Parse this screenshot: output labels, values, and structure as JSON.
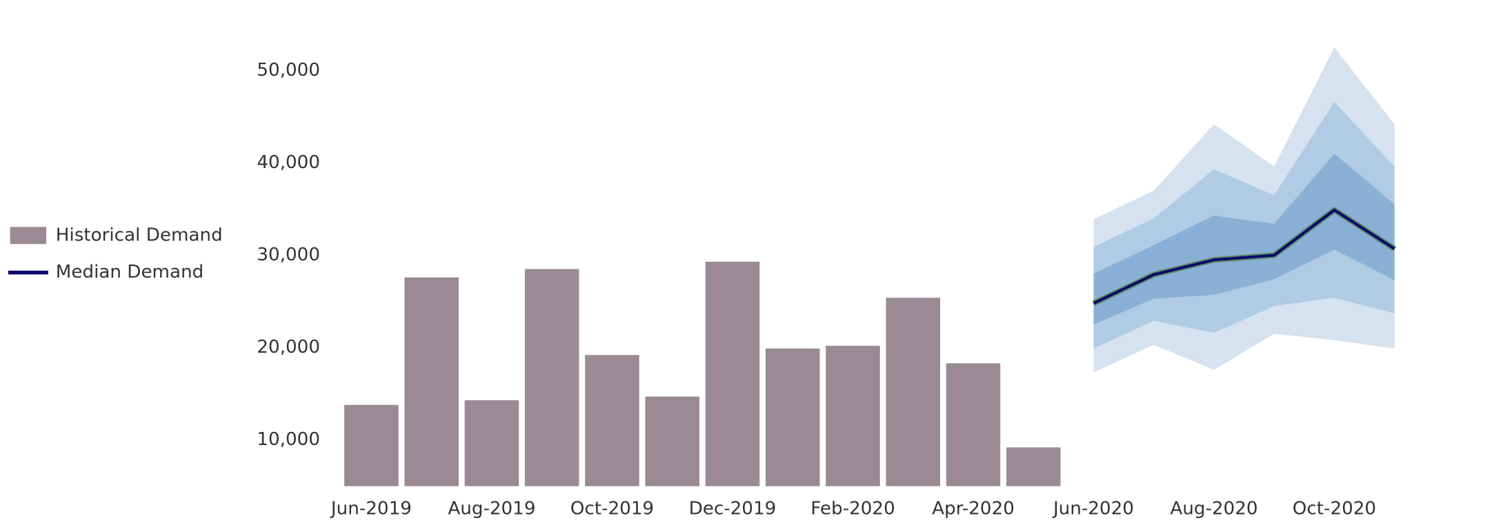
{
  "chart_data": {
    "type": "bar-forecast",
    "categories": [
      "Jun-2019",
      null,
      "Aug-2019",
      null,
      "Oct-2019",
      null,
      "Dec-2019",
      null,
      "Feb-2020",
      null,
      "Apr-2020",
      null,
      "Jun-2020",
      null,
      "Aug-2020",
      null,
      "Oct-2020",
      null
    ],
    "series": [
      {
        "name": "Historical Demand",
        "type": "bar",
        "color": "#9b8a93",
        "values": [
          13800,
          27600,
          14300,
          28500,
          19200,
          14700,
          29300,
          19900,
          20200,
          25400,
          18300,
          9200,
          null,
          null,
          null,
          null,
          null,
          null
        ]
      },
      {
        "name": "Median Demand",
        "type": "line",
        "color": "#0a0a6e",
        "values": [
          null,
          null,
          null,
          null,
          null,
          null,
          null,
          null,
          null,
          null,
          null,
          null,
          24800,
          27900,
          29500,
          30000,
          34900,
          30700
        ]
      }
    ],
    "bands": [
      {
        "color": "#d6e2ef",
        "upper": [
          null,
          null,
          null,
          null,
          null,
          null,
          null,
          null,
          null,
          null,
          null,
          null,
          33900,
          37000,
          44200,
          39600,
          52500,
          44200
        ],
        "lower": [
          null,
          null,
          null,
          null,
          null,
          null,
          null,
          null,
          null,
          null,
          null,
          null,
          17300,
          20300,
          17600,
          21500,
          20800,
          19900
        ]
      },
      {
        "color": "#b0cbe3",
        "upper": [
          null,
          null,
          null,
          null,
          null,
          null,
          null,
          null,
          null,
          null,
          null,
          null,
          30900,
          34000,
          39300,
          36500,
          46600,
          39600
        ],
        "lower": [
          null,
          null,
          null,
          null,
          null,
          null,
          null,
          null,
          null,
          null,
          null,
          null,
          19900,
          22900,
          21600,
          24500,
          25400,
          23700
        ]
      },
      {
        "color": "#8bb0d6",
        "upper": [
          null,
          null,
          null,
          null,
          null,
          null,
          null,
          null,
          null,
          null,
          null,
          null,
          28000,
          31100,
          34300,
          33400,
          41000,
          35500
        ],
        "lower": [
          null,
          null,
          null,
          null,
          null,
          null,
          null,
          null,
          null,
          null,
          null,
          null,
          22500,
          25300,
          25700,
          27400,
          30600,
          27300
        ]
      }
    ],
    "ylim": [
      5000,
      55000
    ],
    "yticks": [
      {
        "value": 10000,
        "label": "10,000"
      },
      {
        "value": 20000,
        "label": "20,000"
      },
      {
        "value": 30000,
        "label": "30,000"
      },
      {
        "value": 40000,
        "label": "40,000"
      },
      {
        "value": 50000,
        "label": "50,000"
      }
    ],
    "grid": false,
    "legend": "left"
  }
}
